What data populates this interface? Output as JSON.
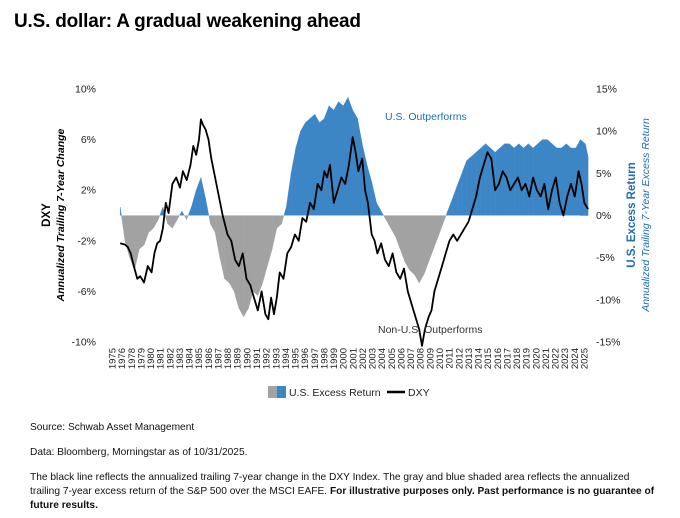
{
  "page": {
    "title": "U.S. dollar: A gradual weakening ahead",
    "source_note": "Source: Schwab Asset Management",
    "data_note": "Data: Bloomberg, Morningstar as of 10/31/2025.",
    "description_note": "The black line reflects the annualized trailing 7-year change in the DXY Index. The gray and blue shaded area reflects the annualized trailing 7-year excess return of the S&P 500 over the MSCI EAFE.",
    "disclaimer_note": "For illustrative purposes only. Past performance is no guarantee of future results."
  },
  "chart_data": {
    "type": "line",
    "ylabel_left_title": "DXY",
    "ylabel_left_sub": "Annualized Trailing 7-Year Change",
    "ylabel_right_title": "U.S. Excess Return",
    "ylabel_right_sub": "Annualized Trailing 7-Year Excess Return",
    "ylim_left": [
      -10,
      10
    ],
    "ylim_right": [
      -15,
      15
    ],
    "left_ticks": [
      "10%",
      "6%",
      "2%",
      "-2%",
      "-6%",
      "-10%"
    ],
    "right_ticks": [
      "15%",
      "10%",
      "5%",
      "0%",
      "-5%",
      "-10%",
      "-15%"
    ],
    "x_tick_labels": [
      "1975",
      "1976",
      "1978",
      "1979",
      "1980",
      "1981",
      "1982",
      "1983",
      "1984",
      "1985",
      "1986",
      "1987",
      "1988",
      "1989",
      "1990",
      "1991",
      "1992",
      "1993",
      "1994",
      "1995",
      "1996",
      "1997",
      "1998",
      "1999",
      "2000",
      "2001",
      "2002",
      "2003",
      "2004",
      "2005",
      "2006",
      "2007",
      "2008",
      "2009",
      "2010",
      "2011",
      "2012",
      "2013",
      "2014",
      "2015",
      "2016",
      "2017",
      "2018",
      "2019",
      "2020",
      "2021",
      "2022",
      "2023",
      "2024",
      "2025"
    ],
    "xlim": [
      1975,
      2026
    ],
    "annotations": [
      "U.S. Outperforms",
      "Non-U.S. Outperforms"
    ],
    "colors": {
      "positive": "#3d86c6",
      "negative": "#a2a2a2",
      "dxy": "#000000",
      "axis_title": "#1f6db5"
    },
    "legend": {
      "placement": "bottom-center",
      "items": [
        "U.S. Excess Return",
        "DXY"
      ]
    },
    "series": [
      {
        "name": "U.S. Excess Return",
        "kind": "area",
        "axis": "right",
        "x": [
          1976.5,
          1977.0,
          1977.5,
          1978.0,
          1978.5,
          1979.0,
          1979.5,
          1980.0,
          1980.5,
          1981.0,
          1981.5,
          1982.0,
          1982.5,
          1983.0,
          1983.5,
          1984.0,
          1984.5,
          1985.0,
          1985.5,
          1986.0,
          1986.5,
          1987.0,
          1987.5,
          1988.0,
          1988.5,
          1989.0,
          1989.5,
          1990.0,
          1990.5,
          1991.0,
          1991.5,
          1992.0,
          1992.5,
          1993.0,
          1993.5,
          1994.0,
          1994.5,
          1995.0,
          1995.5,
          1996.0,
          1996.5,
          1997.0,
          1997.5,
          1998.0,
          1998.5,
          1999.0,
          1999.5,
          2000.0,
          2000.5,
          2001.0,
          2001.5,
          2002.0,
          2002.5,
          2003.0,
          2003.5,
          2004.0,
          2004.5,
          2005.0,
          2005.5,
          2006.0,
          2006.5,
          2007.0,
          2007.5,
          2008.0,
          2008.5,
          2009.0,
          2009.5,
          2010.0,
          2010.5,
          2011.0,
          2011.5,
          2012.0,
          2012.5,
          2013.0,
          2013.5,
          2014.0,
          2014.5,
          2015.0,
          2015.5,
          2016.0,
          2016.5,
          2017.0,
          2017.5,
          2018.0,
          2018.5,
          2019.0,
          2019.5,
          2020.0,
          2020.5,
          2021.0,
          2021.5,
          2022.0,
          2022.5,
          2023.0,
          2023.5,
          2024.0,
          2024.5,
          2025.0,
          2025.5,
          2025.8
        ],
        "values": [
          1.0,
          -3.0,
          -5.0,
          -6.5,
          -4.0,
          -3.5,
          -2.0,
          -1.5,
          -0.5,
          1.0,
          -1.0,
          -1.5,
          -0.5,
          0.5,
          -0.5,
          1.0,
          3.0,
          4.5,
          2.0,
          -1.0,
          -2.0,
          -5.0,
          -7.5,
          -8.0,
          -9.0,
          -11.0,
          -12.0,
          -11.0,
          -9.0,
          -9.5,
          -8.0,
          -6.0,
          -4.0,
          -1.5,
          -1.0,
          1.0,
          5.0,
          8.0,
          10.0,
          11.0,
          11.5,
          12.0,
          11.0,
          11.5,
          13.0,
          12.5,
          13.5,
          13.0,
          14.0,
          12.5,
          11.5,
          8.5,
          6.0,
          4.0,
          1.5,
          0.5,
          -0.5,
          -1.5,
          -2.5,
          -4.0,
          -5.5,
          -6.5,
          -7.0,
          -8.0,
          -7.0,
          -5.5,
          -4.0,
          -2.5,
          -1.0,
          0.5,
          2.0,
          3.5,
          5.0,
          6.5,
          7.0,
          7.5,
          8.0,
          8.5,
          8.0,
          7.5,
          8.0,
          8.5,
          8.5,
          8.0,
          8.5,
          8.0,
          8.5,
          8.0,
          8.5,
          9.0,
          9.0,
          8.5,
          8.0,
          8.0,
          8.5,
          8.0,
          8.0,
          9.0,
          8.5,
          7.0
        ]
      },
      {
        "name": "DXY",
        "kind": "line",
        "axis": "left",
        "x": [
          1976.5,
          1977.0,
          1977.3,
          1977.6,
          1978.0,
          1978.3,
          1978.6,
          1979.0,
          1979.4,
          1979.8,
          1980.1,
          1980.4,
          1980.7,
          1981.0,
          1981.3,
          1981.6,
          1982.0,
          1982.4,
          1982.8,
          1983.1,
          1983.5,
          1983.9,
          1984.2,
          1984.5,
          1984.8,
          1985.0,
          1985.2,
          1985.5,
          1985.8,
          1986.1,
          1986.5,
          1986.9,
          1987.3,
          1987.8,
          1988.2,
          1988.6,
          1989.0,
          1989.4,
          1989.8,
          1990.2,
          1990.6,
          1991.0,
          1991.4,
          1991.8,
          1992.1,
          1992.4,
          1992.7,
          1993.0,
          1993.3,
          1993.7,
          1994.1,
          1994.5,
          1994.9,
          1995.3,
          1995.7,
          1996.1,
          1996.5,
          1996.9,
          1997.3,
          1997.7,
          1998.0,
          1998.3,
          1998.6,
          1999.0,
          1999.4,
          1999.8,
          2000.2,
          2000.6,
          2001.0,
          2001.3,
          2001.6,
          2002.0,
          2002.3,
          2002.6,
          2003.0,
          2003.3,
          2003.6,
          2004.0,
          2004.4,
          2004.8,
          2005.2,
          2005.6,
          2006.0,
          2006.4,
          2006.8,
          2007.2,
          2007.6,
          2008.0,
          2008.3,
          2008.6,
          2009.0,
          2009.3,
          2009.6,
          2010.0,
          2010.4,
          2010.8,
          2011.2,
          2011.6,
          2012.0,
          2012.4,
          2012.8,
          2013.2,
          2013.6,
          2014.0,
          2014.4,
          2014.8,
          2015.2,
          2015.6,
          2016.0,
          2016.4,
          2016.8,
          2017.2,
          2017.6,
          2018.0,
          2018.4,
          2018.8,
          2019.2,
          2019.6,
          2020.0,
          2020.4,
          2020.8,
          2021.2,
          2021.6,
          2022.0,
          2022.4,
          2022.8,
          2023.2,
          2023.6,
          2024.0,
          2024.4,
          2024.8,
          2025.1,
          2025.4,
          2025.8
        ],
        "values": [
          -2.2,
          -2.3,
          -2.5,
          -3.0,
          -4.2,
          -5.0,
          -4.8,
          -5.3,
          -4.0,
          -4.5,
          -3.0,
          -2.2,
          -2.0,
          -1.0,
          1.0,
          0.2,
          2.5,
          3.0,
          2.2,
          3.5,
          2.8,
          4.0,
          5.5,
          4.8,
          6.0,
          7.6,
          7.2,
          6.8,
          6.0,
          4.5,
          3.0,
          1.5,
          0.0,
          -1.5,
          -2.0,
          -3.5,
          -4.0,
          -3.0,
          -5.0,
          -5.5,
          -6.5,
          -7.5,
          -6.0,
          -7.8,
          -8.2,
          -6.5,
          -7.8,
          -6.5,
          -4.5,
          -5.0,
          -3.0,
          -2.5,
          -1.5,
          -2.0,
          -0.2,
          -0.5,
          1.0,
          0.5,
          2.5,
          2.0,
          3.5,
          3.0,
          4.0,
          1.0,
          2.0,
          3.0,
          2.5,
          4.0,
          6.2,
          5.0,
          3.5,
          4.5,
          2.0,
          1.0,
          -1.5,
          -2.0,
          -3.0,
          -2.2,
          -3.5,
          -4.0,
          -3.0,
          -4.5,
          -5.0,
          -4.2,
          -6.0,
          -7.0,
          -8.0,
          -9.0,
          -10.3,
          -9.0,
          -8.0,
          -7.5,
          -6.0,
          -5.0,
          -4.0,
          -3.0,
          -2.0,
          -1.5,
          -2.0,
          -1.5,
          -1.0,
          -0.5,
          0.5,
          1.5,
          3.0,
          4.0,
          5.0,
          4.5,
          2.0,
          2.5,
          3.5,
          3.0,
          2.0,
          2.5,
          3.0,
          2.0,
          2.5,
          1.5,
          3.0,
          2.0,
          1.5,
          2.5,
          0.5,
          2.0,
          3.0,
          1.0,
          0.0,
          1.5,
          2.5,
          1.5,
          3.5,
          2.5,
          1.0,
          0.5
        ]
      }
    ]
  }
}
